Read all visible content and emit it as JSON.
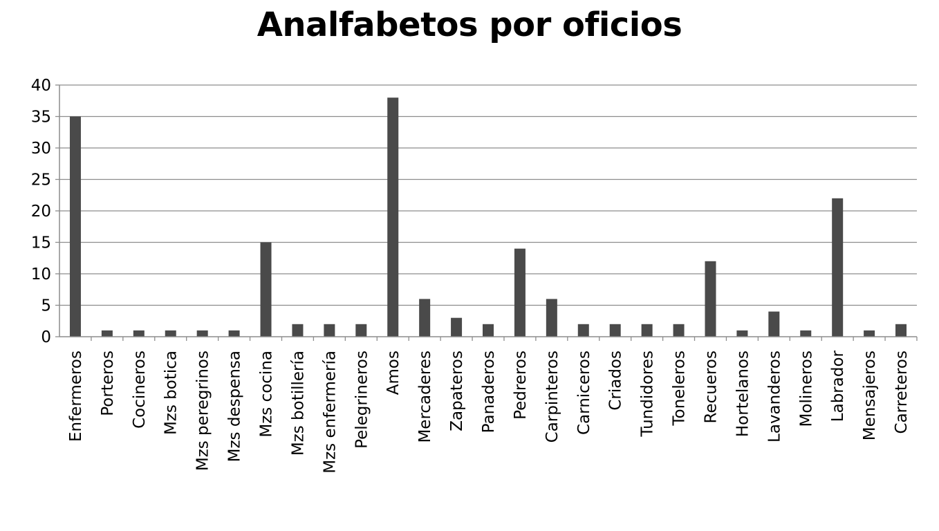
{
  "chart_data": {
    "type": "bar",
    "title": "Analfabetos por oficios",
    "xlabel": "",
    "ylabel": "",
    "ylim": [
      0,
      40
    ],
    "yticks": [
      0,
      5,
      10,
      15,
      20,
      25,
      30,
      35,
      40
    ],
    "grid": true,
    "legend": "none",
    "bar_color": "#4a4a4a",
    "categories": [
      "Enfermeros",
      "Porteros",
      "Cocineros",
      "Mzs botica",
      "Mzs peregrinos",
      "Mzs despensa",
      "Mzs cocina",
      "Mzs botillería",
      "Mzs enfermería",
      "Pelegrineros",
      "Amos",
      "Mercaderes",
      "Zapateros",
      "Panaderos",
      "Pedreros",
      "Carpinteros",
      "Carniceros",
      "Criados",
      "Tundidores",
      "Toneleros",
      "Recueros",
      "Hortelanos",
      "Lavanderos",
      "Molineros",
      "Labrador",
      "Mensajeros",
      "Carreteros"
    ],
    "values": [
      35,
      1,
      1,
      1,
      1,
      1,
      15,
      2,
      2,
      2,
      38,
      6,
      3,
      2,
      14,
      6,
      2,
      2,
      2,
      2,
      12,
      1,
      4,
      1,
      22,
      1,
      2
    ]
  }
}
